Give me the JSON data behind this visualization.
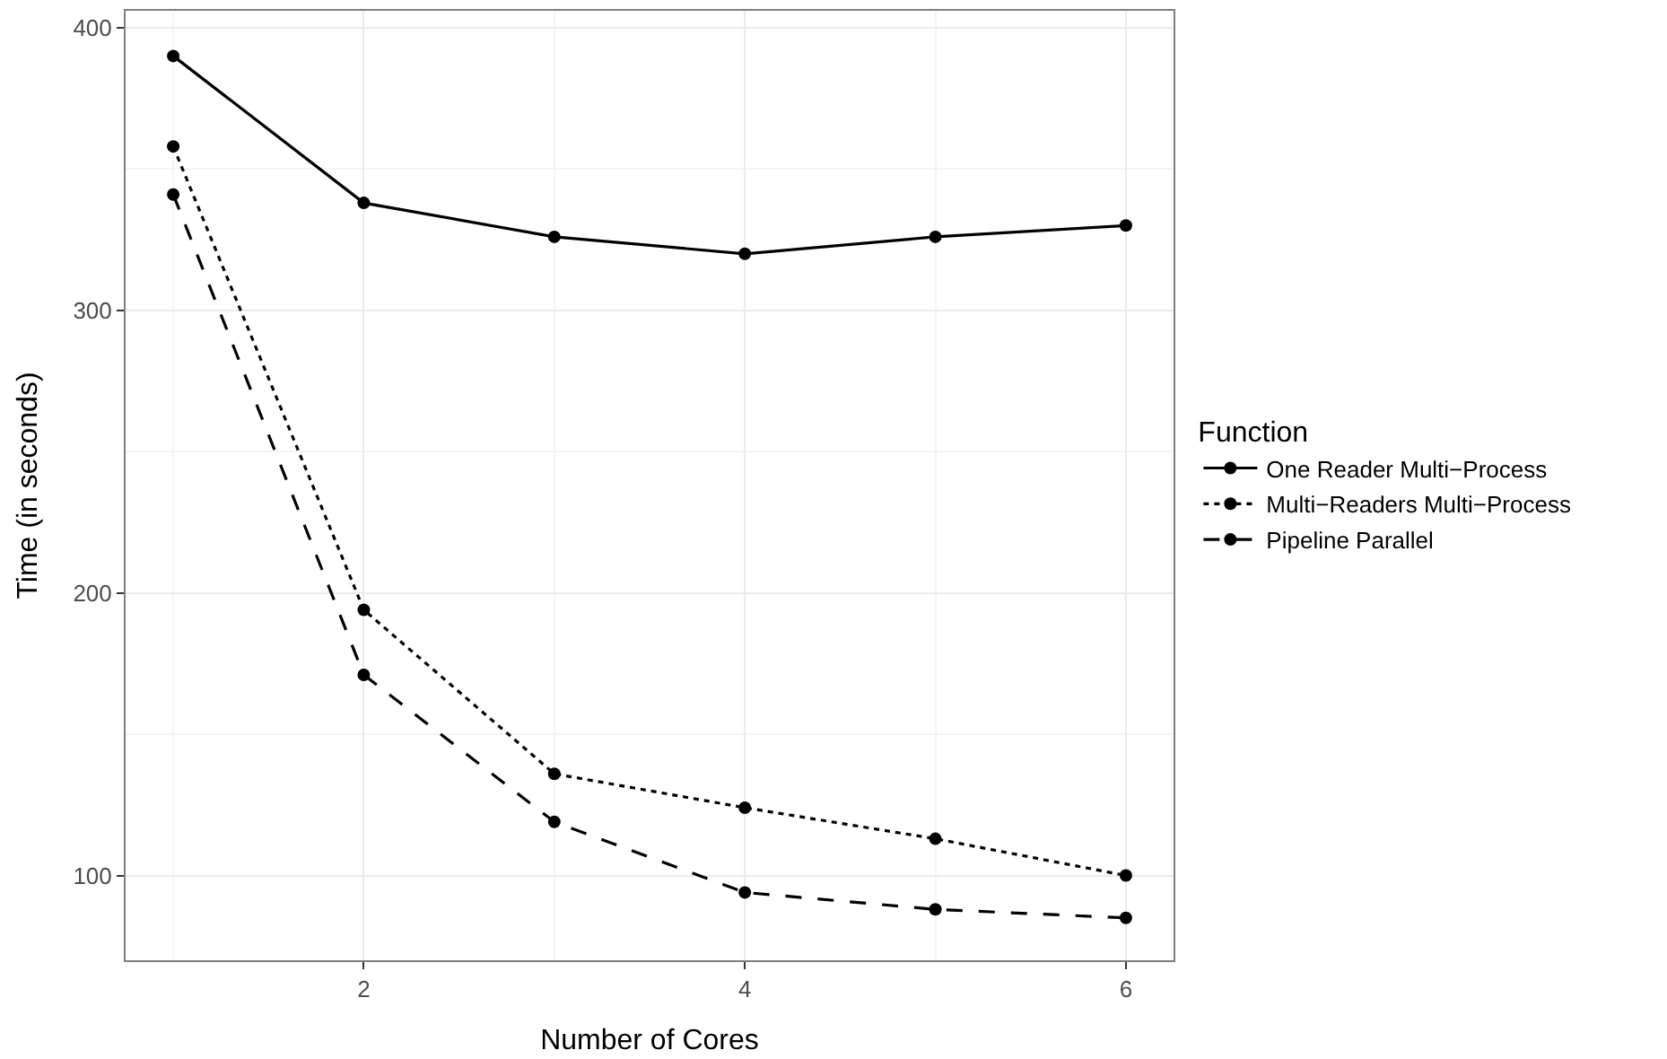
{
  "chart_data": {
    "type": "line",
    "xlabel": "Number of Cores",
    "ylabel": "Time (in seconds)",
    "legend_title": "Function",
    "x": [
      1,
      2,
      3,
      4,
      5,
      6
    ],
    "series": [
      {
        "name": "One Reader Multi−Process",
        "color": "#000000",
        "line_style": "solid",
        "values": [
          390,
          338,
          326,
          320,
          326,
          330
        ]
      },
      {
        "name": "Multi−Readers Multi−Process",
        "color": "#000000",
        "line_style": "dotted",
        "values": [
          358,
          194,
          136,
          124,
          113,
          100
        ]
      },
      {
        "name": "Pipeline Parallel",
        "color": "#000000",
        "line_style": "dashed",
        "values": [
          341,
          171,
          119,
          94,
          88,
          85
        ]
      }
    ],
    "xlim": [
      0.75,
      6.25
    ],
    "xticks": [
      2,
      4,
      6
    ],
    "ylim": [
      70,
      406
    ],
    "yticks": [
      100,
      200,
      300,
      400
    ],
    "grid": true,
    "legend": "right",
    "marker": "circle"
  }
}
